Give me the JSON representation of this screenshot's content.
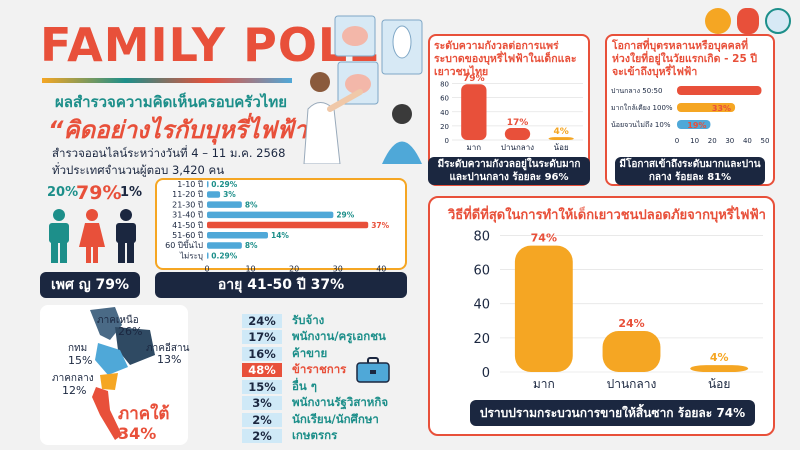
{
  "header": {
    "title": "FAMILY POLL",
    "subtitle": "ผลสำรวจความคิดเห็นครอบครัวไทย",
    "headline": "“คิดอย่างไรกับบุหรี่ไฟฟ้า”",
    "survey_line1": "สำรวจออนไลน์ระหว่างวันที่ 4 – 11 ม.ค. 2568",
    "survey_line2": "ทั่วประเทศจำนวนผู้ตอบ 3,420 คน"
  },
  "gender": {
    "values": [
      "20%",
      "79%",
      "1%"
    ],
    "colors": [
      "#1d8f8a",
      "#e8503a",
      "#1b2740"
    ],
    "icons": [
      "male-person-icon",
      "female-person-icon",
      "other-person-icon"
    ],
    "banner": "เพศ ญ 79%"
  },
  "age_chart": {
    "type": "bar",
    "orientation": "horizontal",
    "categories": [
      "1-10 ปี",
      "11-20 ปี",
      "21-30 ปี",
      "31-40 ปี",
      "41-50 ปี",
      "51-60 ปี",
      "60 ปีขึ้นไป",
      "ไม่ระบุ"
    ],
    "values": [
      0.29,
      3,
      8,
      29,
      37,
      14,
      8,
      0.29
    ],
    "labels": [
      "0.29%",
      "3%",
      "8%",
      "29%",
      "37%",
      "14%",
      "8%",
      "0.29%"
    ],
    "highlight_index": 4,
    "xticks": [
      0,
      10,
      20,
      30,
      40
    ],
    "xlim": [
      0,
      42
    ],
    "bar_color": "#4fa8d8",
    "highlight_color": "#e8503a",
    "banner": "อายุ 41-50 ปี 37%"
  },
  "region": {
    "items": [
      {
        "name": "ภาคเหนือ",
        "value": "26%"
      },
      {
        "name": "กทม",
        "value": "15%"
      },
      {
        "name": "ภาคอีสาน",
        "value": "13%"
      },
      {
        "name": "ภาคกลาง",
        "value": "12%"
      },
      {
        "name": "ภาคใต้",
        "value": "34%"
      }
    ]
  },
  "occupation": {
    "items": [
      {
        "value": "24%",
        "label": "รับจ้าง"
      },
      {
        "value": "17%",
        "label": "พนักงาน/ครูเอกชน"
      },
      {
        "value": "16%",
        "label": "ค้าขาย"
      },
      {
        "value": "48%",
        "label": "ข้าราชการ"
      },
      {
        "value": "15%",
        "label": "อื่น ๆ"
      },
      {
        "value": "3%",
        "label": "พนักงานรัฐวิสาหกิจ"
      },
      {
        "value": "2%",
        "label": "นักเรียน/นักศึกษา"
      },
      {
        "value": "2%",
        "label": "เกษตรกร"
      }
    ],
    "highlight_index": 3,
    "icon": "briefcase-icon"
  },
  "chart_data": [
    {
      "type": "bar",
      "title": "ระดับความกังวลต่อการแพร่ระบาดของบุหรี่ไฟฟ้าในเด็กและเยาวชนไทย",
      "categories": [
        "มาก",
        "ปานกลาง",
        "น้อย"
      ],
      "values": [
        79,
        17,
        4
      ],
      "labels": [
        "79%",
        "17%",
        "4%"
      ],
      "yticks": [
        0,
        20,
        40,
        60,
        80
      ],
      "ylim": [
        0,
        85
      ],
      "colors": [
        "#e8503a",
        "#e8503a",
        "#f5a623"
      ],
      "banner": "มีระดับความกังวลอยู่ในระดับมากและปานกลาง ร้อยละ 96%"
    },
    {
      "type": "bar",
      "orientation": "horizontal",
      "title": "โอกาสที่บุตรหลานหรือบุคคลที่ห่วงใยที่อยู่ในวัยแรกเกิด - 25 ปี จะเข้าถึงบุหรี่ไฟฟ้า",
      "categories": [
        "ปานกลาง 50:50",
        "มากใกล้เคียง 100%",
        "น้อยจวนไม่ถึง 10%"
      ],
      "values": [
        48,
        33,
        19
      ],
      "labels": [
        "48%",
        "33%",
        "19%"
      ],
      "xticks": [
        0,
        10,
        20,
        30,
        40,
        50
      ],
      "xlim": [
        0,
        50
      ],
      "colors": [
        "#e8503a",
        "#f5a623",
        "#4fa8d8"
      ],
      "banner": "มีโอกาสเข้าถึงระดับมากและปานกลาง ร้อยละ 81%"
    },
    {
      "type": "bar",
      "title": "วิธีที่ดีที่สุดในการทำให้เด็กเยาวชนปลอดภัยจากบุหรี่ไฟฟ้า",
      "categories": [
        "มาก",
        "ปานกลาง",
        "น้อย"
      ],
      "values": [
        74,
        24,
        4
      ],
      "labels": [
        "74%",
        "24%",
        "4%"
      ],
      "yticks": [
        0,
        20,
        40,
        60,
        80
      ],
      "ylim": [
        0,
        82
      ],
      "color": "#f5a623",
      "label_color": "#e8503a",
      "banner": "ปราบปรามกระบวนการขายให้สิ้นซาก ร้อยละ 74%"
    }
  ]
}
